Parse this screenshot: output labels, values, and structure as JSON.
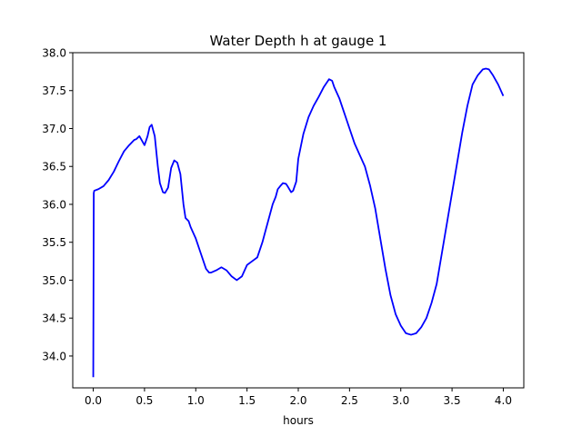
{
  "chart_data": {
    "type": "line",
    "title": "Water Depth h at gauge 1",
    "xlabel": "hours",
    "ylabel": "",
    "xlim": [
      -0.2,
      4.2
    ],
    "ylim": [
      33.58,
      38.0
    ],
    "xticks": [
      0.0,
      0.5,
      1.0,
      1.5,
      2.0,
      2.5,
      3.0,
      3.5,
      4.0
    ],
    "xtick_labels": [
      "0.0",
      "0.5",
      "1.0",
      "1.5",
      "2.0",
      "2.5",
      "3.0",
      "3.5",
      "4.0"
    ],
    "yticks": [
      34.0,
      34.5,
      35.0,
      35.5,
      36.0,
      36.5,
      37.0,
      37.5,
      38.0
    ],
    "ytick_labels": [
      "34.0",
      "34.5",
      "35.0",
      "35.5",
      "36.0",
      "36.5",
      "37.0",
      "37.5",
      "38.0"
    ],
    "grid": false,
    "legend": "none",
    "series": [
      {
        "color": "#0000ff",
        "x": [
          0.0,
          0.005,
          0.01,
          0.05,
          0.1,
          0.15,
          0.2,
          0.25,
          0.3,
          0.35,
          0.4,
          0.42,
          0.45,
          0.5,
          0.53,
          0.55,
          0.57,
          0.6,
          0.63,
          0.65,
          0.68,
          0.7,
          0.73,
          0.76,
          0.79,
          0.82,
          0.85,
          0.88,
          0.9,
          0.93,
          0.95,
          1.0,
          1.05,
          1.1,
          1.13,
          1.15,
          1.2,
          1.25,
          1.3,
          1.35,
          1.4,
          1.45,
          1.5,
          1.55,
          1.6,
          1.65,
          1.7,
          1.75,
          1.78,
          1.8,
          1.83,
          1.85,
          1.88,
          1.9,
          1.93,
          1.95,
          1.98,
          2.0,
          2.05,
          2.1,
          2.15,
          2.2,
          2.25,
          2.3,
          2.33,
          2.35,
          2.4,
          2.45,
          2.5,
          2.55,
          2.6,
          2.65,
          2.7,
          2.75,
          2.8,
          2.85,
          2.9,
          2.95,
          3.0,
          3.05,
          3.1,
          3.15,
          3.2,
          3.25,
          3.3,
          3.35,
          3.4,
          3.45,
          3.5,
          3.55,
          3.6,
          3.65,
          3.7,
          3.75,
          3.8,
          3.83,
          3.86,
          3.9,
          3.95,
          4.0
        ],
        "y": [
          33.72,
          36.15,
          36.18,
          36.2,
          36.24,
          36.32,
          36.43,
          36.57,
          36.7,
          36.78,
          36.85,
          36.86,
          36.9,
          36.78,
          36.9,
          37.02,
          37.05,
          36.9,
          36.5,
          36.28,
          36.16,
          36.15,
          36.22,
          36.48,
          36.58,
          36.55,
          36.4,
          36.0,
          35.82,
          35.78,
          35.7,
          35.55,
          35.35,
          35.15,
          35.1,
          35.1,
          35.13,
          35.17,
          35.13,
          35.05,
          35.0,
          35.05,
          35.2,
          35.25,
          35.3,
          35.5,
          35.75,
          36.0,
          36.1,
          36.2,
          36.25,
          36.28,
          36.27,
          36.23,
          36.16,
          36.18,
          36.3,
          36.6,
          36.93,
          37.15,
          37.3,
          37.42,
          37.55,
          37.65,
          37.63,
          37.55,
          37.4,
          37.2,
          37.0,
          36.8,
          36.65,
          36.5,
          36.25,
          35.95,
          35.55,
          35.15,
          34.8,
          34.55,
          34.4,
          34.3,
          34.28,
          34.3,
          34.38,
          34.5,
          34.7,
          34.95,
          35.35,
          35.75,
          36.15,
          36.55,
          36.95,
          37.3,
          37.58,
          37.7,
          37.78,
          37.79,
          37.78,
          37.7,
          37.58,
          37.43
        ]
      }
    ]
  }
}
